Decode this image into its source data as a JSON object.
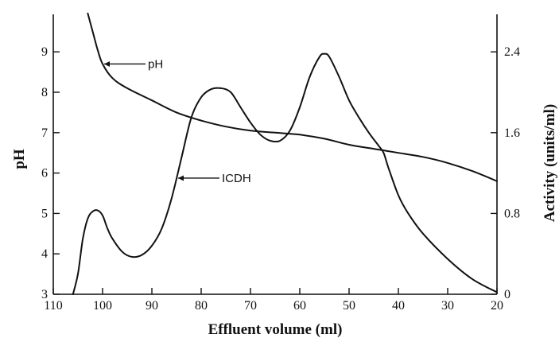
{
  "chart_data": {
    "type": "line",
    "xlabel": "Effluent volume (ml)",
    "ylabel_left": "pH",
    "ylabel_right": "Activity (units/ml)",
    "x_range": [
      110,
      20
    ],
    "x_ticks": [
      110,
      100,
      90,
      80,
      70,
      60,
      50,
      40,
      30,
      20
    ],
    "y_left_range": [
      3,
      10
    ],
    "y_left_ticks": [
      3,
      4,
      5,
      6,
      7,
      8,
      9
    ],
    "y_right_range": [
      0,
      2.8
    ],
    "y_right_ticks": [
      0,
      0.8,
      1.6,
      2.4
    ],
    "y_right_tick_labels": [
      "0",
      "0.8",
      "1.6",
      "2.4"
    ],
    "series": [
      {
        "name": "pH",
        "axis": "left",
        "x": [
          103,
          102,
          101,
          100,
          98,
          95,
          90,
          85,
          80,
          75,
          70,
          65,
          60,
          55,
          50,
          45,
          40,
          35,
          30,
          25,
          20
        ],
        "y": [
          9.95,
          9.5,
          9.05,
          8.7,
          8.35,
          8.1,
          7.8,
          7.5,
          7.3,
          7.15,
          7.05,
          7.0,
          6.95,
          6.85,
          6.7,
          6.6,
          6.5,
          6.4,
          6.25,
          6.05,
          5.8
        ]
      },
      {
        "name": "ICDH",
        "axis": "right",
        "x": [
          106,
          105,
          104,
          103,
          102,
          101,
          100,
          99,
          98,
          96,
          94,
          92,
          90,
          88,
          86,
          84,
          82,
          80,
          78,
          76,
          74,
          72,
          70,
          68,
          66,
          64,
          62,
          60,
          58,
          56,
          55,
          54,
          52,
          50,
          48,
          46,
          44,
          43,
          42,
          40,
          38,
          35,
          30,
          25,
          20
        ],
        "y": [
          0.0,
          0.2,
          0.55,
          0.75,
          0.82,
          0.83,
          0.78,
          0.65,
          0.55,
          0.42,
          0.37,
          0.39,
          0.48,
          0.65,
          0.95,
          1.35,
          1.75,
          1.95,
          2.03,
          2.04,
          2.0,
          1.85,
          1.7,
          1.58,
          1.52,
          1.52,
          1.62,
          1.85,
          2.15,
          2.35,
          2.38,
          2.35,
          2.15,
          1.92,
          1.75,
          1.6,
          1.47,
          1.4,
          1.25,
          0.98,
          0.8,
          0.6,
          0.35,
          0.15,
          0.02
        ]
      }
    ],
    "annotations": [
      {
        "text": "pH",
        "series": "pH"
      },
      {
        "text": "ICDH",
        "series": "ICDH"
      }
    ]
  }
}
